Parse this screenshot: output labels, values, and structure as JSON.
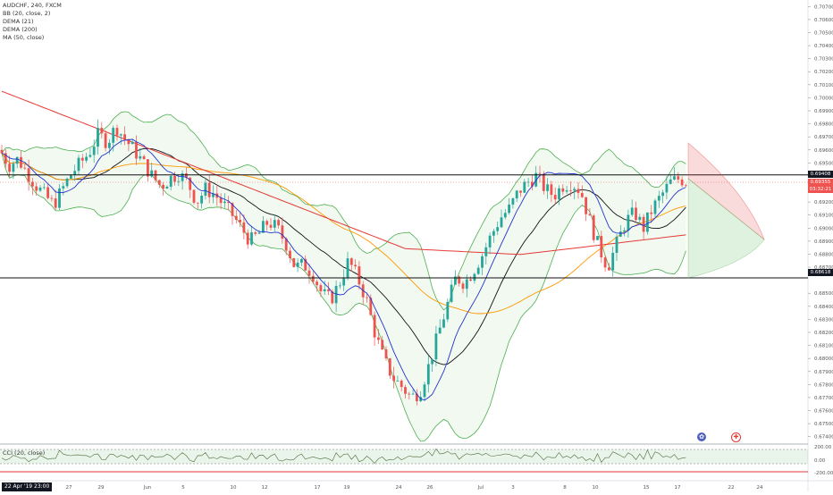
{
  "legend": {
    "symbol": "AUDCHF, 240, FXCM",
    "ind1": "BB (20, close, 2)",
    "ind2": "DEMA (21)",
    "ind3": "DEMA (200)",
    "ind4": "MA (50, close)"
  },
  "cci_label": "CCI (20, close)",
  "date_badge": "22 Apr '19  23:00",
  "price_tags": {
    "upper": "0.69408",
    "current": "0.69355",
    "countdown": "03:32:21",
    "lower": "0.68618"
  },
  "events": {
    "e1": "✿",
    "e2": "✚"
  },
  "colors": {
    "up": "#26a69a",
    "down": "#ef5350",
    "bb": "#4caf50",
    "bb_fill": "rgba(76,175,80,0.08)",
    "dema21": "#2233cc",
    "dema200": "#e53935",
    "ma50": "#ff9800",
    "black_ma": "#111111",
    "cci": "#4a6b3a",
    "cci_fill": "rgba(76,175,80,0.12)"
  },
  "chart_data": {
    "type": "candlestick",
    "title": "AUDCHF, 240, FXCM",
    "y_ticks": [
      "0.70700",
      "0.70600",
      "0.70500",
      "0.70400",
      "0.70300",
      "0.70200",
      "0.70100",
      "0.70000",
      "0.69900",
      "0.69800",
      "0.69700",
      "0.69600",
      "0.69500",
      "0.69300",
      "0.69200",
      "0.69100",
      "0.69000",
      "0.68900",
      "0.68800",
      "0.68700",
      "0.68500",
      "0.68400",
      "0.68300",
      "0.68200",
      "0.68100",
      "0.68000",
      "0.67900",
      "0.67800",
      "0.67700",
      "0.67600",
      "0.67500",
      "0.67400"
    ],
    "x_ticks": [
      "27",
      "29",
      "Jun",
      "5",
      "10",
      "12",
      "17",
      "19",
      "24",
      "26",
      "Jul",
      "3",
      "8",
      "10",
      "15",
      "17",
      "22",
      "24"
    ],
    "ylim": [
      0.6735,
      0.7075
    ],
    "horizontal_levels": [
      0.69408,
      0.68618
    ],
    "cci_ticks": [
      "200.00",
      "0.00",
      "-200.00"
    ],
    "close_path": [
      [
        0,
        0.696
      ],
      [
        10,
        0.6948
      ],
      [
        20,
        0.6953
      ],
      [
        30,
        0.6943
      ],
      [
        40,
        0.6933
      ],
      [
        50,
        0.6925
      ],
      [
        60,
        0.6918
      ],
      [
        70,
        0.693
      ],
      [
        80,
        0.6942
      ],
      [
        90,
        0.695
      ],
      [
        100,
        0.6958
      ],
      [
        110,
        0.6972
      ],
      [
        120,
        0.6966
      ],
      [
        130,
        0.6978
      ],
      [
        140,
        0.6968
      ],
      [
        150,
        0.696
      ],
      [
        160,
        0.695
      ],
      [
        170,
        0.694
      ],
      [
        180,
        0.6932
      ],
      [
        190,
        0.6938
      ],
      [
        200,
        0.6942
      ],
      [
        210,
        0.6935
      ],
      [
        220,
        0.692
      ],
      [
        230,
        0.693
      ],
      [
        240,
        0.6926
      ],
      [
        250,
        0.6918
      ],
      [
        260,
        0.691
      ],
      [
        270,
        0.69
      ],
      [
        280,
        0.689
      ],
      [
        290,
        0.6896
      ],
      [
        300,
        0.6905
      ],
      [
        310,
        0.69
      ],
      [
        320,
        0.6888
      ],
      [
        330,
        0.687
      ],
      [
        340,
        0.6872
      ],
      [
        350,
        0.6865
      ],
      [
        360,
        0.685
      ],
      [
        370,
        0.6845
      ],
      [
        380,
        0.6858
      ],
      [
        390,
        0.6875
      ],
      [
        400,
        0.6862
      ],
      [
        410,
        0.6845
      ],
      [
        420,
        0.6818
      ],
      [
        430,
        0.6798
      ],
      [
        440,
        0.6785
      ],
      [
        450,
        0.6778
      ],
      [
        460,
        0.677
      ],
      [
        470,
        0.6775
      ],
      [
        480,
        0.6795
      ],
      [
        490,
        0.6818
      ],
      [
        500,
        0.684
      ],
      [
        510,
        0.6862
      ],
      [
        520,
        0.6858
      ],
      [
        530,
        0.6868
      ],
      [
        540,
        0.688
      ],
      [
        550,
        0.6895
      ],
      [
        560,
        0.6908
      ],
      [
        570,
        0.6915
      ],
      [
        580,
        0.6928
      ],
      [
        590,
        0.6935
      ],
      [
        600,
        0.694
      ],
      [
        610,
        0.693
      ],
      [
        620,
        0.6925
      ],
      [
        630,
        0.6933
      ],
      [
        640,
        0.6935
      ],
      [
        650,
        0.6928
      ],
      [
        660,
        0.6905
      ],
      [
        670,
        0.6885
      ],
      [
        680,
        0.687
      ],
      [
        690,
        0.6888
      ],
      [
        700,
        0.6905
      ],
      [
        710,
        0.6912
      ],
      [
        720,
        0.69
      ],
      [
        730,
        0.6915
      ],
      [
        740,
        0.6925
      ],
      [
        750,
        0.6935
      ],
      [
        760,
        0.6938
      ],
      [
        770,
        0.6935
      ]
    ]
  }
}
